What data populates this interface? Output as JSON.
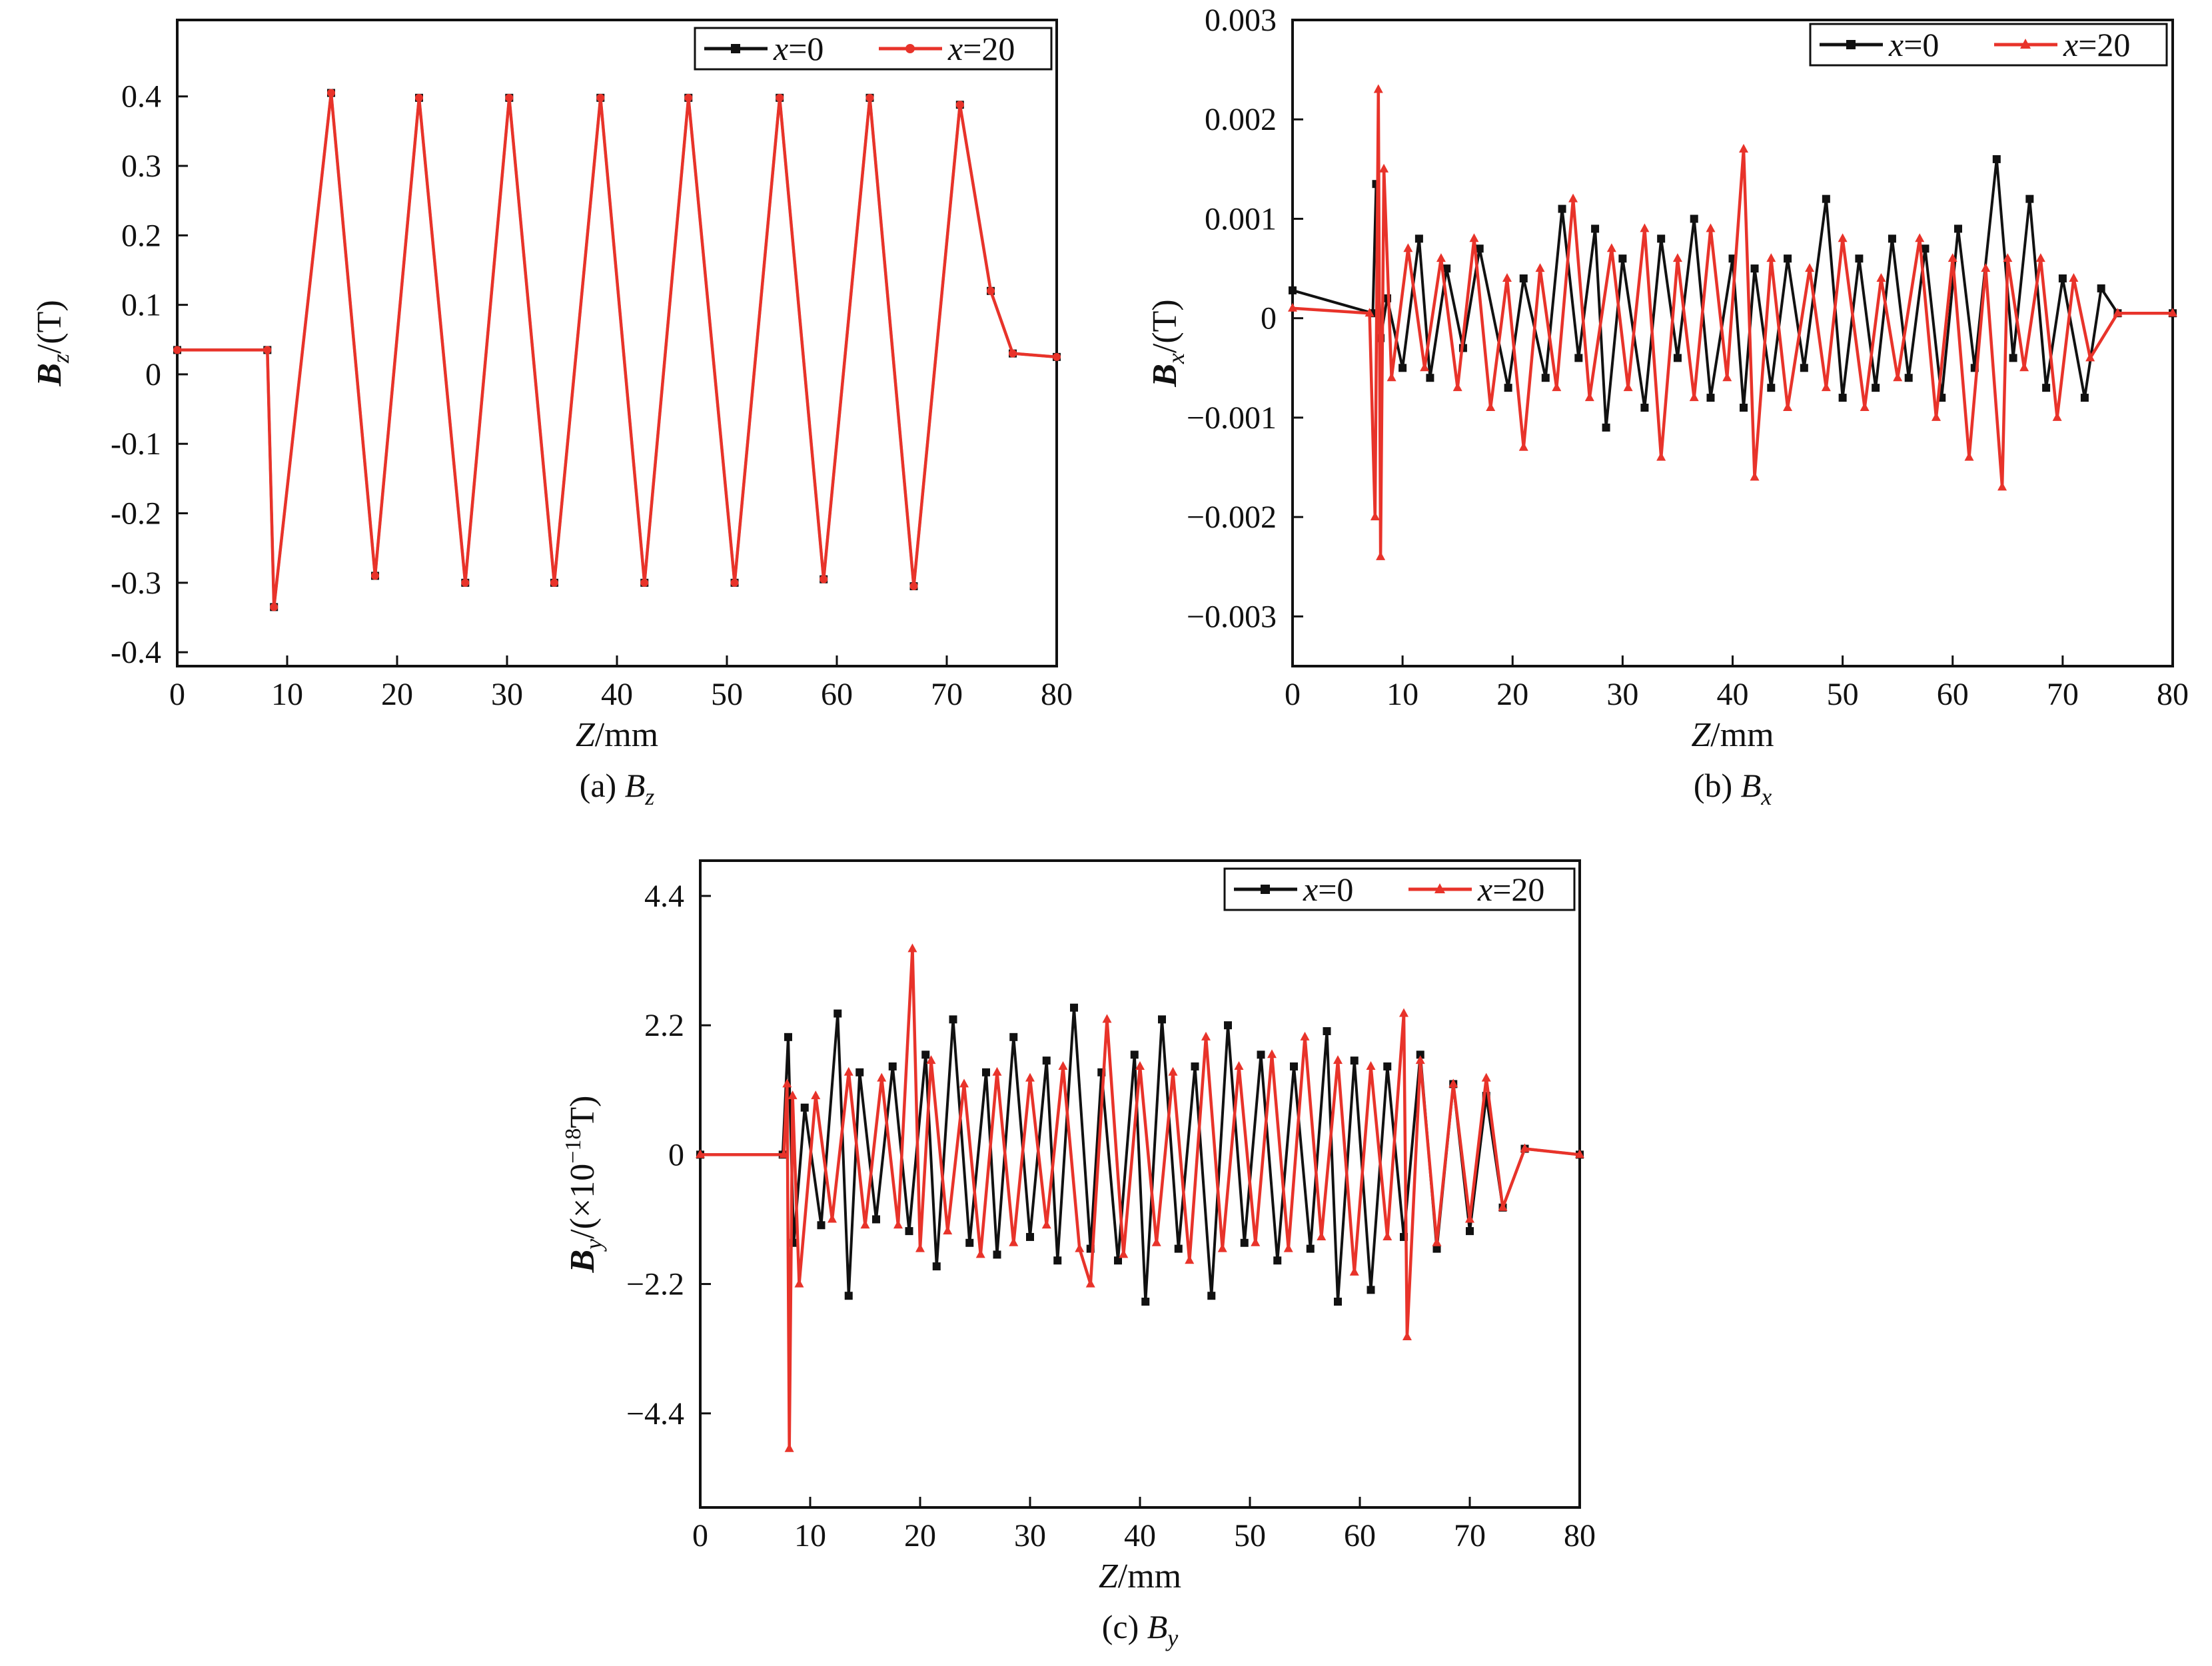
{
  "chart_data": [
    {
      "type": "line",
      "caption": "(a) B",
      "caption_sub": "z",
      "ylabel": "B",
      "ylabel_sub": "z",
      "ylabel_unit": "/(T)",
      "xlabel_var": "Z",
      "xlabel_unit": "/mm",
      "xlim": [
        0,
        80
      ],
      "ylim": [
        -0.42,
        0.51
      ],
      "xticks": [
        "0",
        "10",
        "20",
        "30",
        "40",
        "50",
        "60",
        "70",
        "80"
      ],
      "yticks": [
        "0.4",
        "0.3",
        "0.2",
        "0.1",
        "0",
        "-0.1",
        "-0.2",
        "-0.3",
        "-0.4"
      ],
      "legend_position": "top-right",
      "series": [
        {
          "name": "x=0",
          "legend_prefix": "x",
          "legend_suffix": "=0",
          "color": "#111111",
          "marker": "square",
          "x": [
            0,
            8.2,
            8.8,
            14,
            18,
            22,
            26.2,
            30.2,
            34.3,
            38.5,
            42.5,
            46.5,
            50.7,
            54.8,
            58.8,
            63,
            67,
            71.2,
            74,
            76,
            80
          ],
          "y": [
            0.035,
            0.035,
            -0.335,
            0.405,
            -0.29,
            0.398,
            -0.3,
            0.398,
            -0.3,
            0.398,
            -0.3,
            0.398,
            -0.3,
            0.398,
            -0.295,
            0.398,
            -0.305,
            0.388,
            0.12,
            0.03,
            0.025
          ]
        },
        {
          "name": "x=20",
          "legend_prefix": "x",
          "legend_suffix": "=20",
          "color": "#e8332a",
          "marker": "circle",
          "x": [
            0,
            8.2,
            8.8,
            14,
            18,
            22,
            26.2,
            30.2,
            34.3,
            38.5,
            42.5,
            46.5,
            50.7,
            54.8,
            58.8,
            63,
            67,
            71.2,
            74,
            76,
            80
          ],
          "y": [
            0.035,
            0.035,
            -0.335,
            0.405,
            -0.29,
            0.398,
            -0.3,
            0.398,
            -0.3,
            0.398,
            -0.3,
            0.398,
            -0.3,
            0.398,
            -0.295,
            0.398,
            -0.305,
            0.388,
            0.12,
            0.03,
            0.025
          ]
        }
      ]
    },
    {
      "type": "line",
      "caption": "(b) B",
      "caption_sub": "x",
      "ylabel": "B",
      "ylabel_sub": "x",
      "ylabel_unit": "/(T)",
      "xlabel_var": "Z",
      "xlabel_unit": "/mm",
      "xlim": [
        0,
        80
      ],
      "ylim": [
        -0.0035,
        0.003
      ],
      "xticks": [
        "0",
        "10",
        "20",
        "30",
        "40",
        "50",
        "60",
        "70",
        "80"
      ],
      "yticks": [
        "0.003",
        "0.002",
        "0.001",
        "0",
        "−0.001",
        "−0.002",
        "−0.003"
      ],
      "legend_position": "top-right",
      "series": [
        {
          "name": "x=0",
          "legend_prefix": "x",
          "legend_suffix": "=0",
          "color": "#111111",
          "marker": "square",
          "x": [
            0,
            7.3,
            7.6,
            8.0,
            8.6,
            10,
            11.5,
            12.5,
            14,
            15.5,
            17,
            19.6,
            21,
            23,
            24.5,
            26,
            27.5,
            28.5,
            30,
            32,
            33.5,
            35,
            36.5,
            38,
            40,
            41,
            42,
            43.5,
            45,
            46.5,
            48.5,
            50,
            51.5,
            53,
            54.5,
            56,
            57.5,
            59,
            60.5,
            62,
            64,
            65.5,
            67,
            68.5,
            70,
            72,
            73.5,
            75,
            80
          ],
          "y": [
            0.00028,
            5e-05,
            0.00135,
            -0.0002,
            0.0002,
            -0.0005,
            0.0008,
            -0.0006,
            0.0005,
            -0.0003,
            0.0007,
            -0.0007,
            0.0004,
            -0.0006,
            0.0011,
            -0.0004,
            0.0009,
            -0.0011,
            0.0006,
            -0.0009,
            0.0008,
            -0.0004,
            0.001,
            -0.0008,
            0.0006,
            -0.0009,
            0.0005,
            -0.0007,
            0.0006,
            -0.0005,
            0.0012,
            -0.0008,
            0.0006,
            -0.0007,
            0.0008,
            -0.0006,
            0.0007,
            -0.0008,
            0.0009,
            -0.0005,
            0.0016,
            -0.0004,
            0.0012,
            -0.0007,
            0.0004,
            -0.0008,
            0.0003,
            5e-05,
            5e-05
          ]
        },
        {
          "name": "x=20",
          "legend_prefix": "x",
          "legend_suffix": "=20",
          "color": "#e8332a",
          "marker": "triangle",
          "x": [
            0,
            7.0,
            7.5,
            7.8,
            8.0,
            8.3,
            9,
            10.5,
            12,
            13.5,
            15,
            16.5,
            18,
            19.5,
            21,
            22.5,
            24,
            25.5,
            27,
            29,
            30.5,
            32,
            33.5,
            35,
            36.5,
            38,
            39.5,
            41,
            42,
            43.5,
            45,
            47,
            48.5,
            50,
            52,
            53.5,
            55,
            57,
            58.5,
            60,
            61.5,
            63,
            64.5,
            65,
            66.5,
            68,
            69.5,
            71,
            72.5,
            75,
            80
          ],
          "y": [
            0.0001,
            5e-05,
            -0.002,
            0.0023,
            -0.0024,
            0.0015,
            -0.0006,
            0.0007,
            -0.0005,
            0.0006,
            -0.0007,
            0.0008,
            -0.0009,
            0.0004,
            -0.0013,
            0.0005,
            -0.0007,
            0.0012,
            -0.0008,
            0.0007,
            -0.0007,
            0.0009,
            -0.0014,
            0.0006,
            -0.0008,
            0.0009,
            -0.0006,
            0.0017,
            -0.0016,
            0.0006,
            -0.0009,
            0.0005,
            -0.0007,
            0.0008,
            -0.0009,
            0.0004,
            -0.0006,
            0.0008,
            -0.001,
            0.0006,
            -0.0014,
            0.0005,
            -0.0017,
            0.0006,
            -0.0005,
            0.0006,
            -0.001,
            0.0004,
            -0.0004,
            5e-05,
            5e-05
          ]
        }
      ]
    },
    {
      "type": "line",
      "caption": "(c) B",
      "caption_sub": "y",
      "ylabel": "B",
      "ylabel_sub": "y",
      "ylabel_unit_pre": "/(×10",
      "ylabel_unit_sup": "−18",
      "ylabel_unit_post": "T)",
      "xlabel_var": "Z",
      "xlabel_unit": "/mm",
      "xlim": [
        0,
        80
      ],
      "ylim": [
        -6,
        5
      ],
      "xticks": [
        "0",
        "10",
        "20",
        "30",
        "40",
        "50",
        "60",
        "70",
        "80"
      ],
      "yticks": [
        "4.4",
        "2.2",
        "0",
        "−2.2",
        "−4.4"
      ],
      "ytick_values": [
        4.4,
        2.2,
        0,
        -2.2,
        -4.4
      ],
      "legend_position": "top-right",
      "series": [
        {
          "name": "x=0",
          "legend_prefix": "x",
          "legend_suffix": "=0",
          "color": "#111111",
          "marker": "square",
          "x": [
            0,
            7.5,
            8.0,
            8.5,
            9.5,
            11,
            12.5,
            13.5,
            14.5,
            16,
            17.5,
            19,
            20.5,
            21.5,
            23,
            24.5,
            26,
            27,
            28.5,
            30,
            31.5,
            32.5,
            34,
            35.5,
            36.5,
            38,
            39.5,
            40.5,
            42,
            43.5,
            45,
            46.5,
            48,
            49.5,
            51,
            52.5,
            54,
            55.5,
            57,
            58,
            59.5,
            61,
            62.5,
            64,
            65.5,
            67,
            68.5,
            70,
            71.5,
            73,
            75,
            80
          ],
          "y": [
            0,
            0,
            2.0,
            -1.5,
            0.8,
            -1.2,
            2.4,
            -2.4,
            1.4,
            -1.1,
            1.5,
            -1.3,
            1.7,
            -1.9,
            2.3,
            -1.5,
            1.4,
            -1.7,
            2.0,
            -1.4,
            1.6,
            -1.8,
            2.5,
            -1.6,
            1.4,
            -1.8,
            1.7,
            -2.5,
            2.3,
            -1.6,
            1.5,
            -2.4,
            2.2,
            -1.5,
            1.7,
            -1.8,
            1.5,
            -1.6,
            2.1,
            -2.5,
            1.6,
            -2.3,
            1.5,
            -1.4,
            1.7,
            -1.6,
            1.2,
            -1.3,
            1.0,
            -0.9,
            0.1,
            0
          ]
        },
        {
          "name": "x=20",
          "legend_prefix": "x",
          "legend_suffix": "=20",
          "color": "#e8332a",
          "marker": "triangle",
          "x": [
            0,
            7.6,
            7.9,
            8.1,
            8.4,
            9,
            10.5,
            12,
            13.5,
            15,
            16.5,
            18,
            19.3,
            20,
            21,
            22.5,
            24,
            25.5,
            27,
            28.5,
            30,
            31.5,
            33,
            34.5,
            35.5,
            37,
            38.5,
            40,
            41.5,
            43,
            44.5,
            46,
            47.5,
            49,
            50.5,
            52,
            53.5,
            55,
            56.5,
            58,
            59.5,
            61,
            62.5,
            64,
            64.3,
            65.5,
            67,
            68.5,
            70,
            71.5,
            73,
            75,
            80
          ],
          "y": [
            0,
            0,
            1.2,
            -5.0,
            1.0,
            -2.2,
            1.0,
            -1.1,
            1.4,
            -1.2,
            1.3,
            -1.2,
            3.5,
            -1.6,
            1.6,
            -1.3,
            1.2,
            -1.7,
            1.4,
            -1.5,
            1.3,
            -1.2,
            1.5,
            -1.6,
            -2.2,
            2.3,
            -1.7,
            1.5,
            -1.5,
            1.4,
            -1.8,
            2.0,
            -1.6,
            1.5,
            -1.5,
            1.7,
            -1.6,
            2.0,
            -1.4,
            1.6,
            -2.0,
            1.5,
            -1.4,
            2.4,
            -3.1,
            1.6,
            -1.5,
            1.2,
            -1.1,
            1.3,
            -0.9,
            0.1,
            0
          ]
        }
      ]
    }
  ]
}
